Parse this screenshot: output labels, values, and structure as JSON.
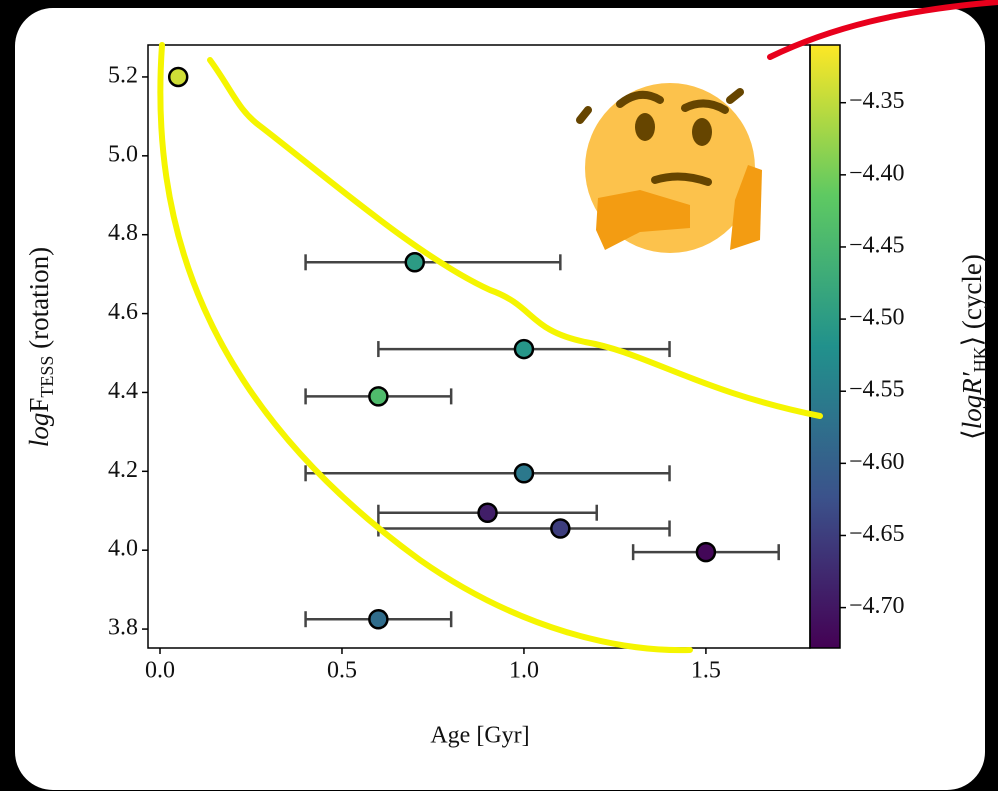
{
  "chart_data": {
    "type": "scatter",
    "x_label": "Age [Gyr]",
    "y_label": {
      "main": "log",
      "f": "F",
      "sub": "TESS",
      "rest": " (rotation)"
    },
    "x": [
      0.05,
      0.7,
      1.0,
      0.6,
      1.0,
      0.9,
      1.1,
      1.5,
      0.6
    ],
    "values": [
      5.2,
      4.73,
      4.51,
      4.39,
      4.195,
      4.095,
      4.055,
      3.995,
      3.825
    ],
    "xerr": [
      null,
      [
        0.3,
        0.4
      ],
      [
        0.4,
        0.4
      ],
      [
        0.2,
        0.2
      ],
      [
        0.6,
        0.4
      ],
      [
        0.3,
        0.3
      ],
      [
        0.5,
        0.3
      ],
      [
        0.2,
        0.2
      ],
      [
        0.2,
        0.2
      ]
    ],
    "c": [
      -4.34,
      -4.5,
      -4.51,
      -4.44,
      -4.56,
      -4.69,
      -4.65,
      -4.72,
      -4.58
    ],
    "xlim": [
      -0.033,
      1.786
    ],
    "ylim": [
      3.752,
      5.281
    ],
    "xticks": [
      {
        "value": 0,
        "label": "0.0"
      },
      0.5,
      {
        "value": 1,
        "label": "1.0"
      },
      1.5
    ],
    "yticks": [
      3.8,
      {
        "value": 4,
        "label": "4.0"
      },
      4.2,
      4.4,
      4.6,
      4.8,
      {
        "value": 5,
        "label": "5.0"
      },
      5.2
    ],
    "colorbar": {
      "colormap": "viridis",
      "label": {
        "open": "⟨",
        "main": "logR′",
        "sub": "HK",
        "close": "⟩",
        "rest": " (cycle)"
      },
      "lim": [
        -4.728,
        -4.31
      ],
      "ticks": [
        {
          "value": -4.7,
          "label": "−4.70"
        },
        {
          "value": -4.65,
          "label": "−4.65"
        },
        {
          "value": -4.6,
          "label": "−4.60"
        },
        {
          "value": -4.55,
          "label": "−4.55"
        },
        {
          "value": -4.5,
          "label": "−4.50"
        },
        {
          "value": -4.45,
          "label": "−4.45"
        },
        {
          "value": -4.4,
          "label": "−4.40"
        },
        {
          "value": -4.35,
          "label": "−4.35"
        }
      ]
    }
  }
}
